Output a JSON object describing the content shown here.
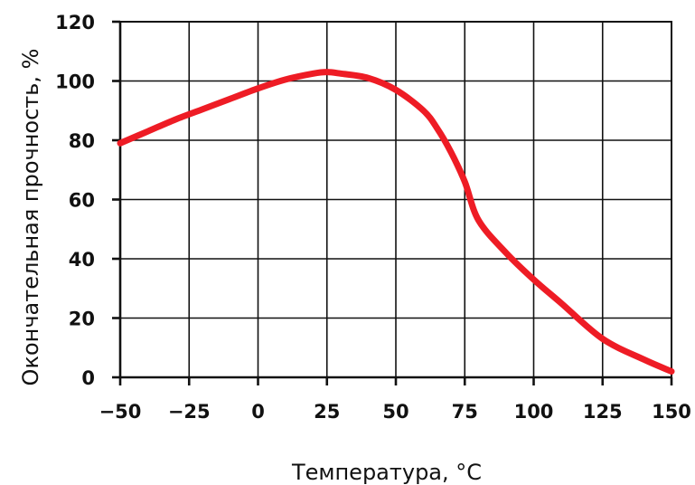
{
  "chart_data": {
    "type": "line",
    "xlabel": "Температура, °С",
    "ylabel": "Окончательная прочность, %",
    "xlim": [
      -50,
      150
    ],
    "ylim": [
      0,
      120
    ],
    "x_ticks": [
      -50,
      -25,
      0,
      25,
      50,
      75,
      100,
      125,
      150
    ],
    "y_ticks": [
      0,
      20,
      40,
      60,
      80,
      100,
      120
    ],
    "x_tick_labels": [
      "−50",
      "−25",
      "0",
      "25",
      "50",
      "75",
      "100",
      "125",
      "150"
    ],
    "y_tick_labels": [
      "0",
      "20",
      "40",
      "60",
      "80",
      "100",
      "120"
    ],
    "grid": true,
    "series": [
      {
        "color": "#ee1c25",
        "x": [
          -50,
          -40,
          -30,
          -20,
          -10,
          0,
          10,
          20,
          25,
          30,
          40,
          50,
          60,
          65,
          70,
          75,
          80,
          90,
          100,
          110,
          125,
          140,
          150
        ],
        "y": [
          79,
          83,
          87,
          90.5,
          94,
          97.5,
          100.5,
          102.5,
          103,
          102.5,
          101,
          97,
          90,
          84,
          76,
          66,
          53,
          42,
          33,
          25,
          13,
          6,
          2
        ]
      }
    ]
  }
}
